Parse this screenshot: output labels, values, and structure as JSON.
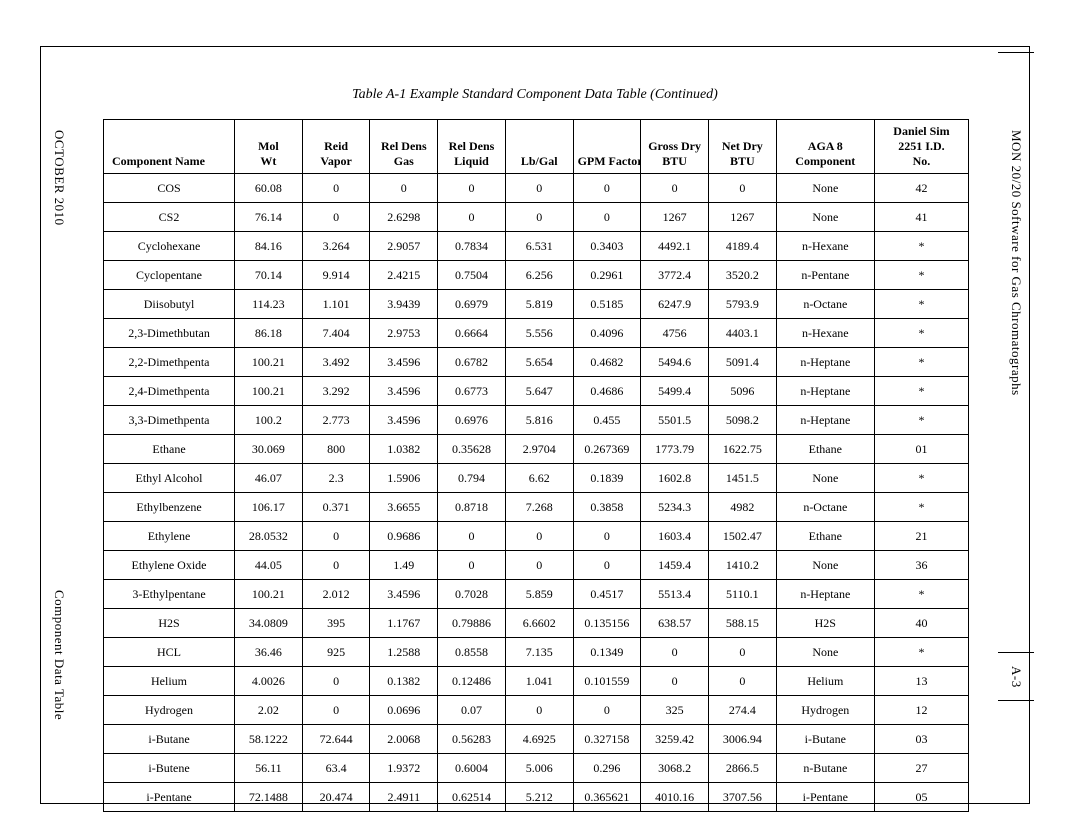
{
  "caption": "Table A-1  Example Standard Component Data Table (Continued)",
  "side_labels": {
    "left_top": "OCTOBER 2010",
    "left_bottom": "Component Data Table",
    "right_top": "MON 20/20 Software for Gas Chromatographs",
    "right_pagenum": "A-3"
  },
  "table": {
    "columns": [
      {
        "key": "name",
        "label": "Component Name",
        "class": "col-name",
        "col": "w-name"
      },
      {
        "key": "mw",
        "label": "Mol\nWt",
        "col": "wn"
      },
      {
        "key": "reid",
        "label": "Reid\nVapor",
        "col": "wn"
      },
      {
        "key": "rdg",
        "label": "Rel Dens\nGas",
        "col": "wn"
      },
      {
        "key": "rdl",
        "label": "Rel Dens\nLiquid",
        "col": "wn"
      },
      {
        "key": "lbgal",
        "label": "Lb/Gal",
        "col": "wn"
      },
      {
        "key": "gpm",
        "label": "GPM Factor",
        "col": "wn"
      },
      {
        "key": "gbtu",
        "label": "Gross Dry\nBTU",
        "col": "wn"
      },
      {
        "key": "nbtu",
        "label": "Net Dry\nBTU",
        "col": "wn"
      },
      {
        "key": "aga",
        "label": "AGA 8\nComponent",
        "col": "wc"
      },
      {
        "key": "dsim",
        "label": "Daniel Sim\n2251 I.D.\nNo.",
        "col": "wd"
      }
    ],
    "rows": [
      [
        "COS",
        "60.08",
        "0",
        "0",
        "0",
        "0",
        "0",
        "0",
        "0",
        "None",
        "42"
      ],
      [
        "CS2",
        "76.14",
        "0",
        "2.6298",
        "0",
        "0",
        "0",
        "1267",
        "1267",
        "None",
        "41"
      ],
      [
        "Cyclohexane",
        "84.16",
        "3.264",
        "2.9057",
        "0.7834",
        "6.531",
        "0.3403",
        "4492.1",
        "4189.4",
        "n-Hexane",
        "*"
      ],
      [
        "Cyclopentane",
        "70.14",
        "9.914",
        "2.4215",
        "0.7504",
        "6.256",
        "0.2961",
        "3772.4",
        "3520.2",
        "n-Pentane",
        "*"
      ],
      [
        "Diisobutyl",
        "114.23",
        "1.101",
        "3.9439",
        "0.6979",
        "5.819",
        "0.5185",
        "6247.9",
        "5793.9",
        "n-Octane",
        "*"
      ],
      [
        "2,3-Dimethbutan",
        "86.18",
        "7.404",
        "2.9753",
        "0.6664",
        "5.556",
        "0.4096",
        "4756",
        "4403.1",
        "n-Hexane",
        "*"
      ],
      [
        "2,2-Dimethpenta",
        "100.21",
        "3.492",
        "3.4596",
        "0.6782",
        "5.654",
        "0.4682",
        "5494.6",
        "5091.4",
        "n-Heptane",
        "*"
      ],
      [
        "2,4-Dimethpenta",
        "100.21",
        "3.292",
        "3.4596",
        "0.6773",
        "5.647",
        "0.4686",
        "5499.4",
        "5096",
        "n-Heptane",
        "*"
      ],
      [
        "3,3-Dimethpenta",
        "100.2",
        "2.773",
        "3.4596",
        "0.6976",
        "5.816",
        "0.455",
        "5501.5",
        "5098.2",
        "n-Heptane",
        "*"
      ],
      [
        "Ethane",
        "30.069",
        "800",
        "1.0382",
        "0.35628",
        "2.9704",
        "0.267369",
        "1773.79",
        "1622.75",
        "Ethane",
        "01"
      ],
      [
        "Ethyl Alcohol",
        "46.07",
        "2.3",
        "1.5906",
        "0.794",
        "6.62",
        "0.1839",
        "1602.8",
        "1451.5",
        "None",
        "*"
      ],
      [
        "Ethylbenzene",
        "106.17",
        "0.371",
        "3.6655",
        "0.8718",
        "7.268",
        "0.3858",
        "5234.3",
        "4982",
        "n-Octane",
        "*"
      ],
      [
        "Ethylene",
        "28.0532",
        "0",
        "0.9686",
        "0",
        "0",
        "0",
        "1603.4",
        "1502.47",
        "Ethane",
        "21"
      ],
      [
        "Ethylene Oxide",
        "44.05",
        "0",
        "1.49",
        "0",
        "0",
        "0",
        "1459.4",
        "1410.2",
        "None",
        "36"
      ],
      [
        "3-Ethylpentane",
        "100.21",
        "2.012",
        "3.4596",
        "0.7028",
        "5.859",
        "0.4517",
        "5513.4",
        "5110.1",
        "n-Heptane",
        "*"
      ],
      [
        "H2S",
        "34.0809",
        "395",
        "1.1767",
        "0.79886",
        "6.6602",
        "0.135156",
        "638.57",
        "588.15",
        "H2S",
        "40"
      ],
      [
        "HCL",
        "36.46",
        "925",
        "1.2588",
        "0.8558",
        "7.135",
        "0.1349",
        "0",
        "0",
        "None",
        "*"
      ],
      [
        "Helium",
        "4.0026",
        "0",
        "0.1382",
        "0.12486",
        "1.041",
        "0.101559",
        "0",
        "0",
        "Helium",
        "13"
      ],
      [
        "Hydrogen",
        "2.02",
        "0",
        "0.0696",
        "0.07",
        "0",
        "0",
        "325",
        "274.4",
        "Hydrogen",
        "12"
      ],
      [
        "i-Butane",
        "58.1222",
        "72.644",
        "2.0068",
        "0.56283",
        "4.6925",
        "0.327158",
        "3259.42",
        "3006.94",
        "i-Butane",
        "03"
      ],
      [
        "i-Butene",
        "56.11",
        "63.4",
        "1.9372",
        "0.6004",
        "5.006",
        "0.296",
        "3068.2",
        "2866.5",
        "n-Butane",
        "27"
      ],
      [
        "i-Pentane",
        "72.1488",
        "20.474",
        "2.4911",
        "0.62514",
        "5.212",
        "0.365621",
        "4010.16",
        "3707.56",
        "i-Pentane",
        "05"
      ]
    ]
  },
  "style": {
    "background_color": "#ffffff",
    "border_color": "#000000",
    "font_family": "Times New Roman",
    "header_fontsize_pt": 10,
    "cell_fontsize_pt": 10
  }
}
